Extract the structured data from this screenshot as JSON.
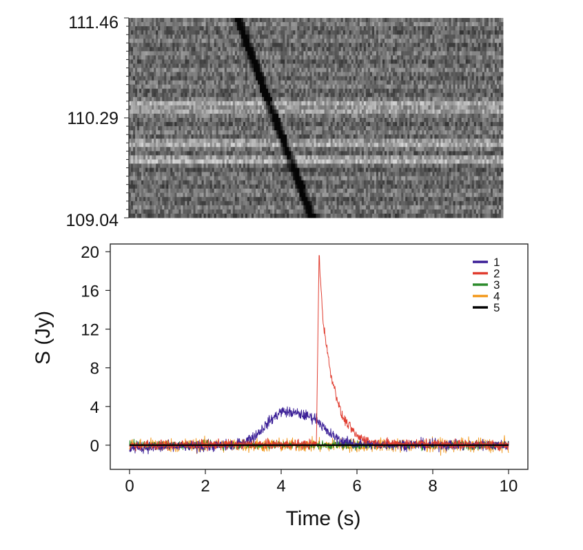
{
  "chart_data": [
    {
      "type": "heatmap",
      "description_of_content": "dynamic spectrum",
      "y_ticks": [
        "111.46",
        "110.29",
        "109.04"
      ],
      "y_range": [
        109.04,
        111.46
      ],
      "x_range": [
        0,
        10
      ],
      "colormap": "grayscale",
      "sweep": {
        "start": {
          "x": 2.9,
          "y": 111.46
        },
        "end": {
          "x": 4.9,
          "y": 109.04
        }
      },
      "bright_bands": [
        {
          "y_from": 110.28,
          "y_to": 110.44
        },
        {
          "y_from": 109.88,
          "y_to": 109.98
        },
        {
          "y_from": 109.68,
          "y_to": 109.78
        }
      ]
    },
    {
      "type": "line",
      "xlabel": "Time (s)",
      "ylabel": "S (Jy)",
      "xlim": [
        0,
        10
      ],
      "ylim": [
        -2.5,
        20.8
      ],
      "x_ticks": [
        0,
        2,
        4,
        6,
        8,
        10
      ],
      "y_ticks": [
        0,
        4,
        8,
        12,
        16,
        20
      ],
      "legend_position": "top-right",
      "series": [
        {
          "name": "1",
          "color": "#3a1e96",
          "x": [
            0,
            2.8,
            3.3,
            3.7,
            4.0,
            4.4,
            4.8,
            4.95,
            5.2,
            5.6,
            6.0,
            10
          ],
          "values": [
            -0.3,
            0.0,
            0.9,
            2.5,
            3.5,
            3.3,
            2.9,
            2.7,
            1.4,
            0.4,
            0.1,
            0.0
          ],
          "noise": 0.4
        },
        {
          "name": "2",
          "color": "#e03c2f",
          "x": [
            0,
            4.93,
            5.0,
            5.1,
            5.3,
            5.6,
            6.0,
            6.5,
            10
          ],
          "values": [
            0.0,
            0.1,
            19.8,
            13.0,
            7.5,
            3.0,
            0.9,
            0.2,
            0.0
          ],
          "noise": 0.35
        },
        {
          "name": "3",
          "color": "#2a8a2a",
          "x": [
            0,
            10
          ],
          "values": [
            0.0,
            0.0
          ],
          "noise": 0.3
        },
        {
          "name": "4",
          "color": "#f39a1e",
          "x": [
            0,
            10
          ],
          "values": [
            0.0,
            0.0
          ],
          "noise": 0.5
        },
        {
          "name": "5",
          "color": "#000000",
          "x": [
            0,
            10
          ],
          "values": [
            0.0,
            0.0
          ],
          "noise": 0.0
        }
      ]
    }
  ]
}
